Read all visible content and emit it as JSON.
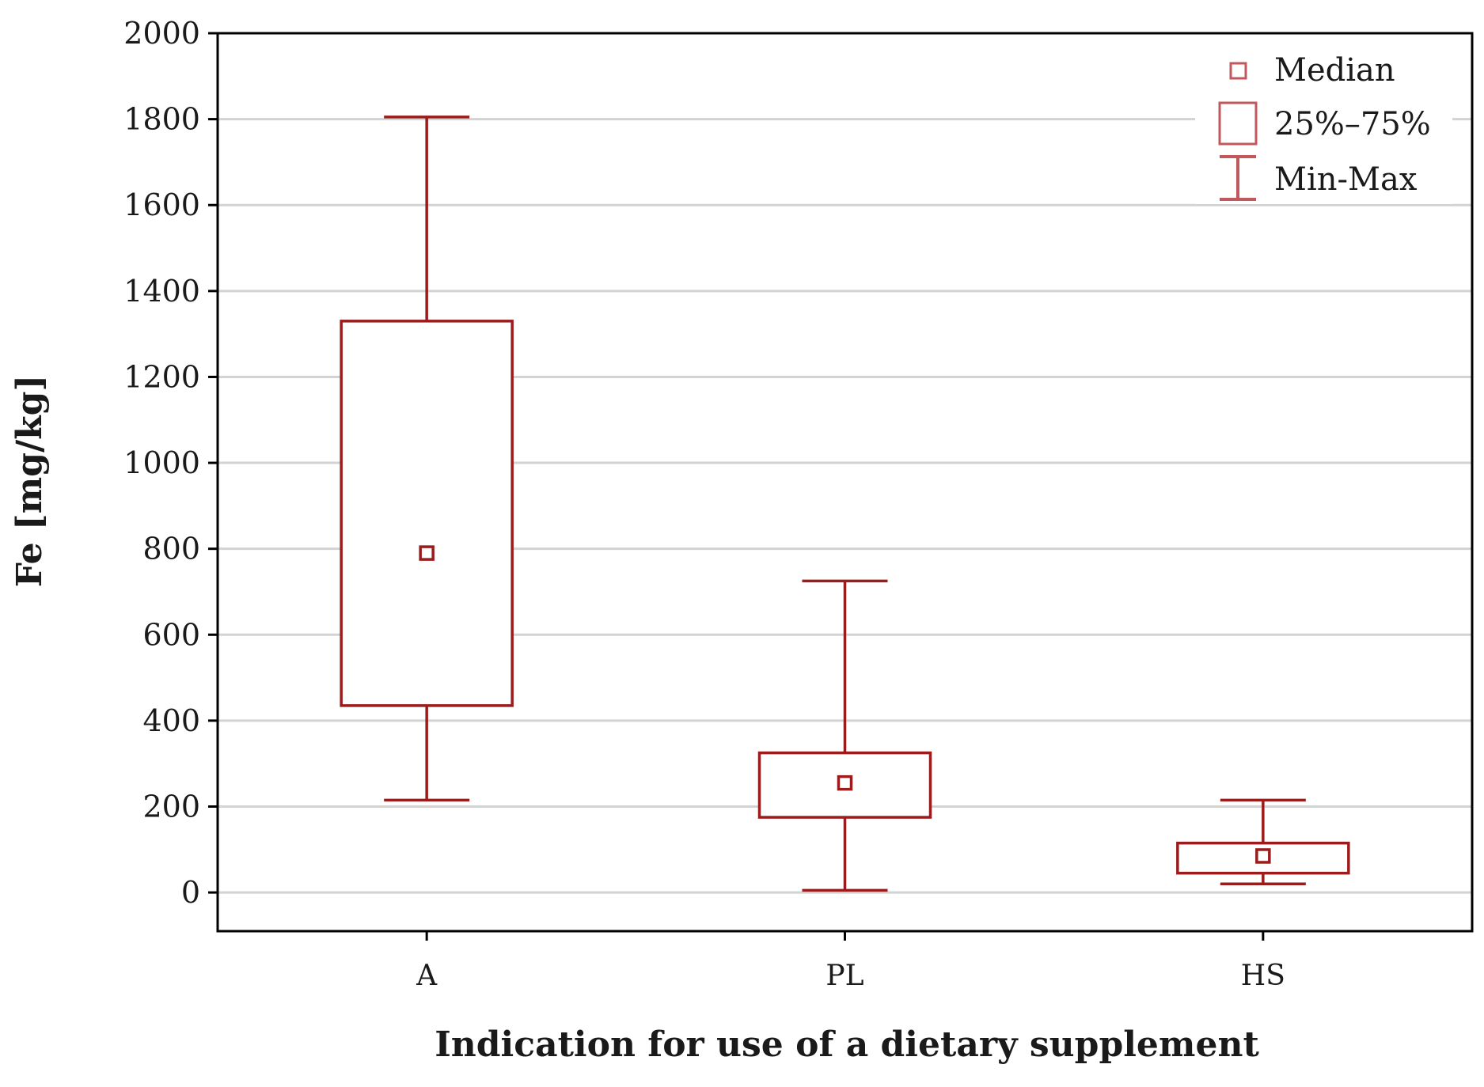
{
  "chart_data": {
    "type": "box",
    "title": "",
    "xlabel": "Indication for use of a dietary supplement",
    "ylabel": "Fe [mg/kg]",
    "ylim": [
      -90,
      2000
    ],
    "yticks": [
      0,
      200,
      400,
      600,
      800,
      1000,
      1200,
      1400,
      1600,
      1800,
      2000
    ],
    "grid": true,
    "categories": [
      "A",
      "PL",
      "HS"
    ],
    "series": [
      {
        "category": "A",
        "min": 215,
        "q1": 435,
        "median": 790,
        "q3": 1330,
        "max": 1805
      },
      {
        "category": "PL",
        "min": 5,
        "q1": 175,
        "median": 255,
        "q3": 325,
        "max": 725
      },
      {
        "category": "HS",
        "min": 20,
        "q1": 45,
        "median": 85,
        "q3": 115,
        "max": 215
      }
    ],
    "legend": {
      "position": "top-right",
      "items": [
        {
          "label": "Median",
          "icon": "median-square-icon"
        },
        {
          "label": "25%–75%",
          "icon": "box-icon"
        },
        {
          "label": "Min-Max",
          "icon": "whisker-icon"
        }
      ]
    },
    "colors": {
      "series": "#9b1c1c",
      "legend": "#c0585c",
      "grid": "#d3d3d3",
      "axis": "#000000"
    }
  }
}
